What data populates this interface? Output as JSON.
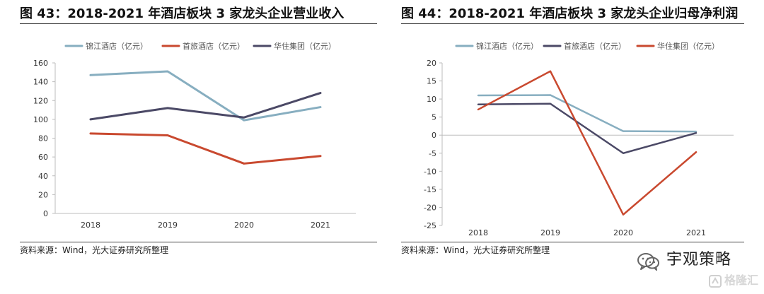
{
  "charts": [
    {
      "title": "图 43：2018-2021 年酒店板块 3 家龙头企业营业收入",
      "source": "资料来源：Wind，光大证券研究所整理"
    },
    {
      "title": "图 44：2018-2021 年酒店板块 3 家龙头企业归母净利润",
      "source": "资料来源：Wind，光大证券研究所整理"
    }
  ],
  "watermark": {
    "account": "宇观策略",
    "brand": "格隆汇",
    "icon": "wechat-icon",
    "brand_icon": "gelonghui-icon",
    "brand_color": "#d8d8d8"
  },
  "chart_data": [
    {
      "type": "line",
      "title": "图 43：2018-2021 年酒店板块 3 家龙头企业营业收入",
      "categories": [
        "2018",
        "2019",
        "2020",
        "2021"
      ],
      "xlabel": "",
      "ylabel": "",
      "ylim": [
        0,
        160
      ],
      "yticks": [
        0,
        20,
        40,
        60,
        80,
        100,
        120,
        140,
        160
      ],
      "grid": false,
      "legend_position": "top",
      "series": [
        {
          "name": "锦江酒店（亿元）",
          "color": "#87aec0",
          "values": [
            147,
            151,
            99,
            113
          ]
        },
        {
          "name": "首旅酒店（亿元）",
          "color": "#c9492f",
          "values": [
            85,
            83,
            53,
            61
          ]
        },
        {
          "name": "华住集团（亿元）",
          "color": "#4b4966",
          "values": [
            100,
            112,
            102,
            128
          ]
        }
      ]
    },
    {
      "type": "line",
      "title": "图 44：2018-2021 年酒店板块 3 家龙头企业归母净利润",
      "categories": [
        "2018",
        "2019",
        "2020",
        "2021"
      ],
      "xlabel": "",
      "ylabel": "",
      "ylim": [
        -25,
        20
      ],
      "yticks": [
        -25,
        -20,
        -15,
        -10,
        -5,
        0,
        5,
        10,
        15,
        20
      ],
      "grid": false,
      "legend_position": "top",
      "series": [
        {
          "name": "锦江酒店（亿元）",
          "color": "#87aec0",
          "values": [
            11,
            11.1,
            1.1,
            1
          ]
        },
        {
          "name": "首旅酒店（亿元）",
          "color": "#4b4966",
          "values": [
            8.5,
            8.7,
            -5,
            0.6
          ]
        },
        {
          "name": "华住集团（亿元）",
          "color": "#c9492f",
          "values": [
            7.1,
            17.7,
            -22,
            -4.7
          ]
        }
      ]
    }
  ]
}
